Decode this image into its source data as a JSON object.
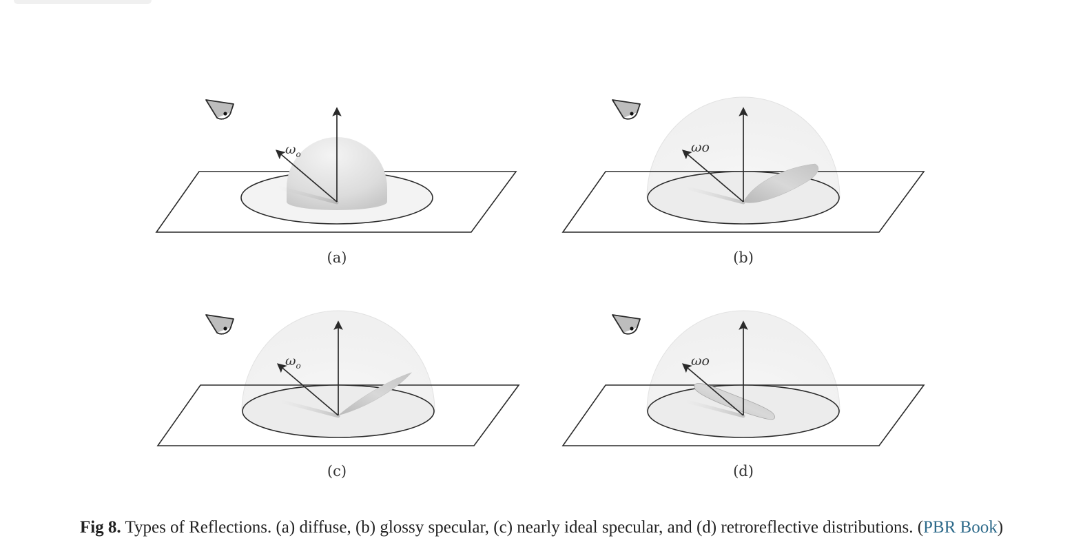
{
  "figure": {
    "panels": [
      {
        "id": "a",
        "label": "(a)",
        "lobe": "diffuse",
        "omega_label": "ω",
        "omega_sub": "o"
      },
      {
        "id": "b",
        "label": "(b)",
        "lobe": "glossy",
        "omega_label": "ωo",
        "omega_sub": ""
      },
      {
        "id": "c",
        "label": "(c)",
        "lobe": "ideal",
        "omega_label": "ω",
        "omega_sub": "o"
      },
      {
        "id": "d",
        "label": "(d)",
        "lobe": "retro",
        "omega_label": "ωo",
        "omega_sub": ""
      }
    ]
  },
  "caption": {
    "fig_num": "Fig 8.",
    "text": " Types of Reflections. (a) diffuse, (b) glossy specular, (c) nearly ideal specular, and (d) retroreflective distributions. (",
    "link": "PBR Book",
    "close": ")"
  },
  "colors": {
    "stroke": "#2a2a2a",
    "link": "#2d6a8a",
    "lobe": "#d9d9d9"
  }
}
